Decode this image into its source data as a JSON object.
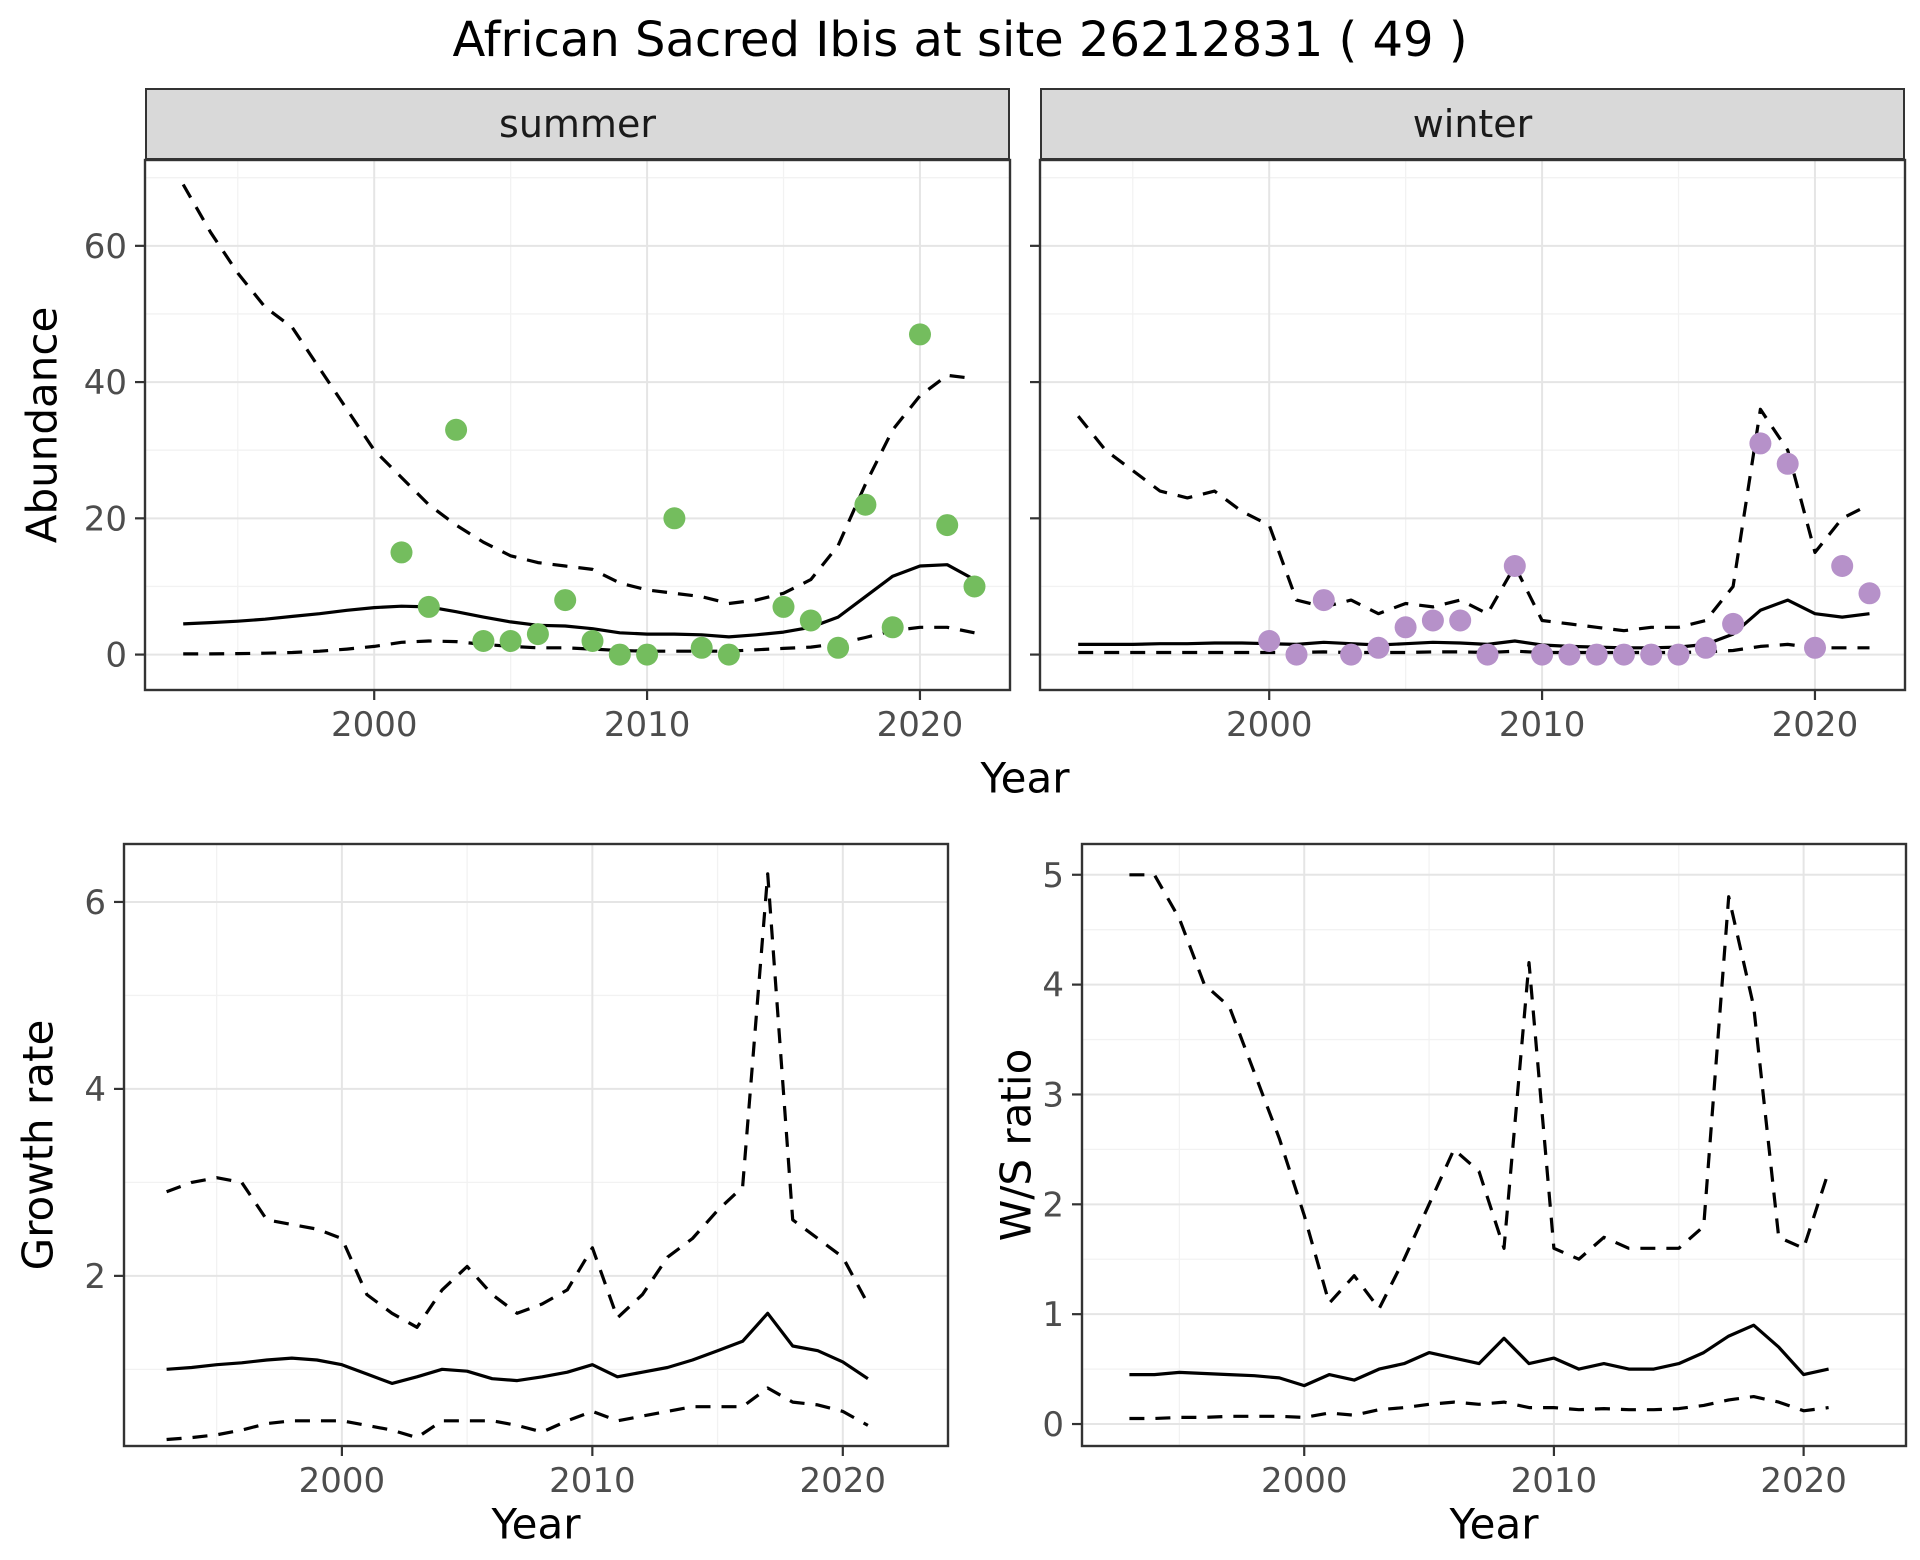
{
  "title": "African Sacred Ibis at site 26212831 ( 49 )",
  "facets": [
    "summer",
    "winter"
  ],
  "axes": {
    "abundance": "Abundance",
    "year": "Year",
    "growth_rate": "Growth rate",
    "ws_ratio": "W/S ratio"
  },
  "colors": {
    "summer_points": "#74bd5e",
    "winter_points": "#b691c9",
    "line": "#000000",
    "grid_major": "#e5e5e5",
    "grid_minor": "#f2f2f2",
    "strip_bg": "#d9d9d9",
    "panel_border": "#333333",
    "tick_label": "#4d4d4d"
  },
  "chart_data": [
    {
      "id": "abundance-summer",
      "type": "line",
      "facet": "summer",
      "xlabel": "Year",
      "ylabel": "Abundance",
      "xlim": [
        1991.6,
        2023.3
      ],
      "ylim": [
        -5.2,
        72.6
      ],
      "xticks": [
        2000,
        2010,
        2020
      ],
      "yticks": [
        0,
        20,
        40,
        60
      ],
      "x": [
        1993,
        1994,
        1995,
        1996,
        1997,
        1998,
        1999,
        2000,
        2001,
        2002,
        2003,
        2004,
        2005,
        2006,
        2007,
        2008,
        2009,
        2010,
        2011,
        2012,
        2013,
        2014,
        2015,
        2016,
        2017,
        2018,
        2019,
        2020,
        2021,
        2022
      ],
      "series": [
        {
          "name": "upper_ci",
          "style": "dashed",
          "values": [
            69,
            62,
            56,
            51,
            48,
            42,
            36,
            30,
            26,
            22,
            19,
            16.5,
            14.5,
            13.5,
            13,
            12.5,
            10.5,
            9.5,
            9,
            8.5,
            7.5,
            8,
            9,
            11,
            16,
            25,
            33,
            38,
            41,
            40.5
          ]
        },
        {
          "name": "fit",
          "style": "solid",
          "values": [
            4.5,
            4.7,
            4.9,
            5.2,
            5.6,
            6,
            6.5,
            6.9,
            7.1,
            7,
            6.3,
            5.5,
            4.8,
            4.3,
            4.2,
            3.8,
            3.2,
            3,
            3,
            2.9,
            2.6,
            2.9,
            3.3,
            4,
            5.5,
            8.5,
            11.5,
            13,
            13.2,
            11
          ]
        },
        {
          "name": "lower_ci",
          "style": "dashed",
          "values": [
            0.1,
            0.1,
            0.15,
            0.2,
            0.3,
            0.5,
            0.8,
            1.2,
            1.8,
            2,
            1.9,
            1.5,
            1.2,
            1,
            1,
            0.8,
            0.6,
            0.5,
            0.5,
            0.5,
            0.5,
            0.7,
            0.9,
            1.1,
            1.6,
            2.5,
            3.5,
            4,
            4,
            3.2
          ]
        }
      ],
      "points": {
        "name": "observed",
        "color": "#74bd5e",
        "x": [
          2001,
          2002,
          2003,
          2004,
          2005,
          2006,
          2007,
          2008,
          2009,
          2010,
          2011,
          2012,
          2013,
          2015,
          2016,
          2017,
          2018,
          2019,
          2020,
          2021,
          2022
        ],
        "values": [
          15,
          7,
          33,
          2,
          2,
          3,
          8,
          2,
          0,
          0,
          20,
          1,
          0,
          7,
          5,
          1,
          22,
          4,
          47,
          19,
          10
        ]
      }
    },
    {
      "id": "abundance-winter",
      "type": "line",
      "facet": "winter",
      "xlabel": "Year",
      "ylabel": "Abundance",
      "xlim": [
        1991.6,
        2023.3
      ],
      "ylim": [
        -5.2,
        72.6
      ],
      "xticks": [
        2000,
        2010,
        2020
      ],
      "yticks": [
        0,
        20,
        40,
        60
      ],
      "x": [
        1993,
        1994,
        1995,
        1996,
        1997,
        1998,
        1999,
        2000,
        2001,
        2002,
        2003,
        2004,
        2005,
        2006,
        2007,
        2008,
        2009,
        2010,
        2011,
        2012,
        2013,
        2014,
        2015,
        2016,
        2017,
        2018,
        2019,
        2020,
        2021,
        2022
      ],
      "series": [
        {
          "name": "upper_ci",
          "style": "dashed",
          "values": [
            35,
            30,
            27,
            24,
            23,
            24,
            21,
            19,
            8,
            7,
            8,
            6,
            7.5,
            7,
            8,
            6,
            13,
            5,
            4.5,
            4,
            3.5,
            4,
            4,
            5,
            10,
            36,
            30,
            15,
            20,
            22
          ]
        },
        {
          "name": "fit",
          "style": "solid",
          "values": [
            1.5,
            1.5,
            1.5,
            1.6,
            1.6,
            1.7,
            1.7,
            1.6,
            1.5,
            1.8,
            1.6,
            1.4,
            1.6,
            1.8,
            1.7,
            1.5,
            2,
            1.4,
            1.2,
            1.1,
            1,
            1,
            1.1,
            1.5,
            3,
            6.5,
            8,
            6,
            5.5,
            6
          ]
        },
        {
          "name": "lower_ci",
          "style": "dashed",
          "values": [
            0.3,
            0.3,
            0.3,
            0.3,
            0.3,
            0.3,
            0.3,
            0.3,
            0.3,
            0.4,
            0.3,
            0.3,
            0.3,
            0.4,
            0.4,
            0.3,
            0.5,
            0.3,
            0.3,
            0.3,
            0.3,
            0.3,
            0.3,
            0.4,
            0.6,
            1.2,
            1.5,
            1,
            1,
            1
          ]
        }
      ],
      "points": {
        "name": "observed",
        "color": "#b691c9",
        "x": [
          2000,
          2001,
          2002,
          2003,
          2004,
          2005,
          2006,
          2007,
          2008,
          2009,
          2010,
          2011,
          2012,
          2013,
          2014,
          2015,
          2016,
          2017,
          2018,
          2019,
          2020,
          2021,
          2022
        ],
        "values": [
          2,
          0,
          8,
          0,
          1,
          4,
          5,
          5,
          0,
          13,
          0,
          0,
          0,
          0,
          0,
          0,
          1,
          4.5,
          31,
          28,
          1,
          13,
          9
        ]
      }
    },
    {
      "id": "growth-rate",
      "type": "line",
      "xlabel": "Year",
      "ylabel": "Growth rate",
      "xlim": [
        1991.3,
        2024.2
      ],
      "ylim": [
        0.18,
        6.62
      ],
      "xticks": [
        2000,
        2010,
        2020
      ],
      "yticks": [
        2,
        4,
        6
      ],
      "x": [
        1993,
        1994,
        1995,
        1996,
        1997,
        1998,
        1999,
        2000,
        2001,
        2002,
        2003,
        2004,
        2005,
        2006,
        2007,
        2008,
        2009,
        2010,
        2011,
        2012,
        2013,
        2014,
        2015,
        2016,
        2017,
        2018,
        2019,
        2020,
        2021
      ],
      "series": [
        {
          "name": "upper_ci",
          "style": "dashed",
          "values": [
            2.9,
            3,
            3.05,
            3,
            2.6,
            2.55,
            2.5,
            2.4,
            1.8,
            1.6,
            1.45,
            1.85,
            2.1,
            1.8,
            1.6,
            1.7,
            1.85,
            2.3,
            1.55,
            1.8,
            2.2,
            2.4,
            2.7,
            2.95,
            6.3,
            2.6,
            2.4,
            2.2,
            1.7
          ]
        },
        {
          "name": "fit",
          "style": "solid",
          "values": [
            1,
            1.02,
            1.05,
            1.07,
            1.1,
            1.12,
            1.1,
            1.05,
            0.95,
            0.85,
            0.92,
            1,
            0.98,
            0.9,
            0.88,
            0.92,
            0.97,
            1.05,
            0.92,
            0.97,
            1.02,
            1.1,
            1.2,
            1.3,
            1.6,
            1.25,
            1.2,
            1.08,
            0.9
          ]
        },
        {
          "name": "lower_ci",
          "style": "dashed",
          "values": [
            0.25,
            0.27,
            0.3,
            0.35,
            0.42,
            0.45,
            0.45,
            0.45,
            0.4,
            0.35,
            0.27,
            0.45,
            0.45,
            0.45,
            0.4,
            0.33,
            0.45,
            0.55,
            0.45,
            0.5,
            0.55,
            0.6,
            0.6,
            0.6,
            0.8,
            0.65,
            0.62,
            0.55,
            0.4
          ]
        }
      ]
    },
    {
      "id": "ws-ratio",
      "type": "line",
      "xlabel": "Year",
      "ylabel": "W/S ratio",
      "xlim": [
        1991.1,
        2024.1
      ],
      "ylim": [
        -0.2,
        5.28
      ],
      "xticks": [
        2000,
        2010,
        2020
      ],
      "yticks": [
        0,
        1,
        2,
        3,
        4,
        5
      ],
      "x": [
        1993,
        1994,
        1995,
        1996,
        1997,
        1998,
        1999,
        2000,
        2001,
        2002,
        2003,
        2004,
        2005,
        2006,
        2007,
        2008,
        2009,
        2010,
        2011,
        2012,
        2013,
        2014,
        2015,
        2016,
        2017,
        2018,
        2019,
        2020,
        2021
      ],
      "series": [
        {
          "name": "upper_ci",
          "style": "dashed",
          "values": [
            5,
            5,
            4.6,
            4,
            3.8,
            3.2,
            2.6,
            1.9,
            1.1,
            1.35,
            1.05,
            1.5,
            2,
            2.5,
            2.3,
            1.6,
            4.2,
            1.6,
            1.5,
            1.7,
            1.6,
            1.6,
            1.6,
            1.8,
            4.8,
            3.8,
            1.7,
            1.6,
            2.3
          ]
        },
        {
          "name": "fit",
          "style": "solid",
          "values": [
            0.45,
            0.45,
            0.47,
            0.46,
            0.45,
            0.44,
            0.42,
            0.35,
            0.45,
            0.4,
            0.5,
            0.55,
            0.65,
            0.6,
            0.55,
            0.78,
            0.55,
            0.6,
            0.5,
            0.55,
            0.5,
            0.5,
            0.55,
            0.65,
            0.8,
            0.9,
            0.7,
            0.45,
            0.5
          ]
        },
        {
          "name": "lower_ci",
          "style": "dashed",
          "values": [
            0.05,
            0.05,
            0.06,
            0.06,
            0.07,
            0.07,
            0.07,
            0.06,
            0.1,
            0.08,
            0.13,
            0.15,
            0.18,
            0.2,
            0.18,
            0.2,
            0.15,
            0.15,
            0.13,
            0.14,
            0.13,
            0.13,
            0.14,
            0.17,
            0.22,
            0.25,
            0.2,
            0.12,
            0.15
          ]
        }
      ]
    }
  ]
}
